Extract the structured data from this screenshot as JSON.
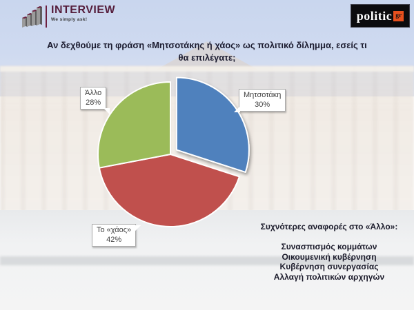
{
  "header": {
    "interview_logo": {
      "name": "INTERVIEW",
      "tagline": "We simply ask!"
    },
    "politic_logo": {
      "name": "politic",
      "suffix": "gr",
      "accent_color": "#e8501e"
    }
  },
  "title": "Αν δεχθούμε τη φράση «Μητσοτάκης ή χάος» ως πολιτικό δίλημμα, εσείς τι θα επιλέγατε;",
  "chart_data": {
    "type": "pie",
    "title": "Αν δεχθούμε τη φράση «Μητσοτάκης ή χάος» ως πολιτικό δίλημμα, εσείς τι θα επιλέγατε;",
    "start_angle_deg": 0,
    "direction": "clockwise",
    "legend_position": "none",
    "labels": "callout boxes with category name and percent",
    "slices": [
      {
        "label": "Μητσοτάκη",
        "value": 30,
        "percent_label": "30%",
        "color": "#4f81bd",
        "exploded": true
      },
      {
        "label": "Το «χάος»",
        "value": 42,
        "percent_label": "42%",
        "color": "#c0504d",
        "exploded": false
      },
      {
        "label": "Άλλο",
        "value": 28,
        "percent_label": "28%",
        "color": "#9bbb59",
        "exploded": false
      }
    ]
  },
  "notes": {
    "heading": "Συχνότερες αναφορές στο «Άλλο»:",
    "items": [
      "Συνασπισμός κομμάτων",
      "Οικουμενική κυβέρνηση",
      "Κυβέρνηση συνεργασίας",
      "Αλλαγή πολιτικών αρχηγών"
    ]
  }
}
